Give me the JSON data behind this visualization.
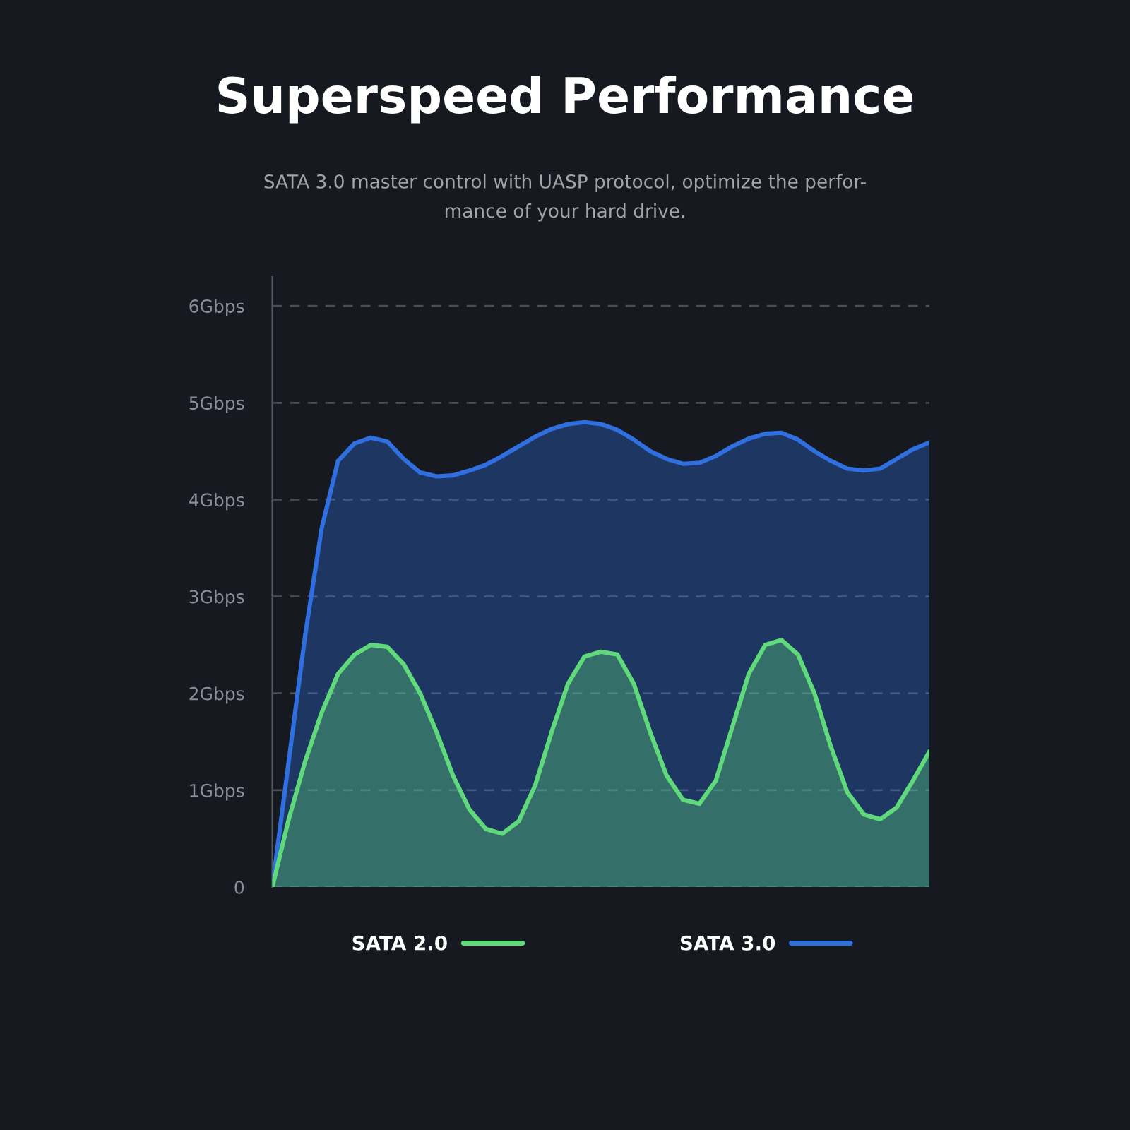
{
  "chart_data": {
    "type": "area",
    "title": "Superspeed Performance",
    "subtitle": "SATA 3.0 master control with UASP protocol, optimize the perfor-\nmance of your hard drive.",
    "categories": [
      null,
      null,
      null,
      null,
      null,
      null,
      null,
      null,
      null,
      null,
      null,
      null,
      null,
      null,
      null,
      null,
      null,
      null,
      null,
      null,
      null,
      null,
      null,
      null,
      null,
      null,
      null,
      null,
      null,
      null,
      null,
      null,
      null,
      null,
      null,
      null,
      null,
      null,
      null,
      null,
      null
    ],
    "series": [
      {
        "name": "SATA 2.0",
        "color": "#5fd97a",
        "values": [
          0,
          0.7,
          1.3,
          1.8,
          2.2,
          2.4,
          2.5,
          2.48,
          2.3,
          2.0,
          1.6,
          1.15,
          0.8,
          0.6,
          0.55,
          0.68,
          1.05,
          1.6,
          2.1,
          2.38,
          2.43,
          2.4,
          2.1,
          1.6,
          1.15,
          0.9,
          0.86,
          1.1,
          1.65,
          2.2,
          2.5,
          2.55,
          2.4,
          2.0,
          1.45,
          0.98,
          0.75,
          0.7,
          0.82,
          1.1,
          1.4
        ]
      },
      {
        "name": "SATA 3.0",
        "color": "#2f6fe0",
        "values": [
          0,
          1.3,
          2.6,
          3.7,
          4.4,
          4.58,
          4.64,
          4.6,
          4.42,
          4.28,
          4.24,
          4.25,
          4.3,
          4.36,
          4.45,
          4.55,
          4.65,
          4.73,
          4.78,
          4.8,
          4.78,
          4.72,
          4.62,
          4.5,
          4.42,
          4.37,
          4.38,
          4.45,
          4.55,
          4.63,
          4.68,
          4.69,
          4.62,
          4.5,
          4.4,
          4.32,
          4.3,
          4.32,
          4.42,
          4.52,
          4.59
        ]
      }
    ],
    "ylim": [
      0,
      6.3
    ],
    "yticks": [
      {
        "value": 0,
        "label": "0"
      },
      {
        "value": 1,
        "label": "1Gbps"
      },
      {
        "value": 2,
        "label": "2Gbps"
      },
      {
        "value": 3,
        "label": "3Gbps"
      },
      {
        "value": 4,
        "label": "4Gbps"
      },
      {
        "value": 5,
        "label": "5Gbps"
      },
      {
        "value": 6,
        "label": "6Gbps"
      }
    ],
    "grid": "y",
    "legend": "bottom",
    "line_style": "solid",
    "tick_labels": "y"
  }
}
